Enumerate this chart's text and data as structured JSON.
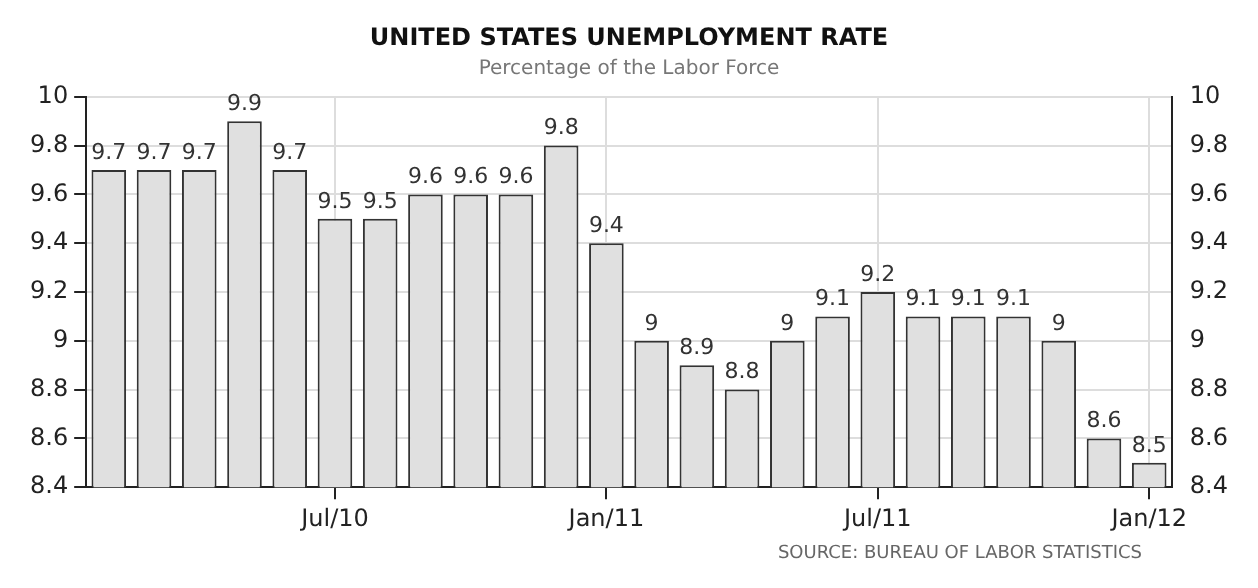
{
  "chart_data": {
    "type": "bar",
    "title": "UNITED STATES UNEMPLOYMENT RATE",
    "subtitle": "Percentage of the Labor Force",
    "categories": [
      null,
      null,
      null,
      null,
      null,
      "Jul/10",
      null,
      null,
      null,
      null,
      null,
      "Jan/11",
      null,
      null,
      null,
      null,
      null,
      "Jul/11",
      null,
      null,
      null,
      null,
      null,
      "Jan/12"
    ],
    "values": [
      9.7,
      9.7,
      9.7,
      9.9,
      9.7,
      9.5,
      9.5,
      9.6,
      9.6,
      9.6,
      9.8,
      9.4,
      9,
      8.9,
      8.8,
      9,
      9.1,
      9.2,
      9.1,
      9.1,
      9.1,
      9,
      8.6,
      8.5
    ],
    "color": "#e0e0e0",
    "ylim": [
      8.4,
      10
    ],
    "yticks": [
      8.4,
      8.6,
      8.8,
      9,
      9.2,
      9.4,
      9.6,
      9.8,
      10
    ],
    "y2lim": [
      8.4,
      10
    ],
    "y2ticks": [
      8.4,
      8.6,
      8.8,
      9,
      9.2,
      9.4,
      9.6,
      9.8,
      10
    ],
    "grid": true,
    "data_labels": true,
    "annotations": [
      "SOURCE: BUREAU OF LABOR STATISTICS"
    ]
  }
}
